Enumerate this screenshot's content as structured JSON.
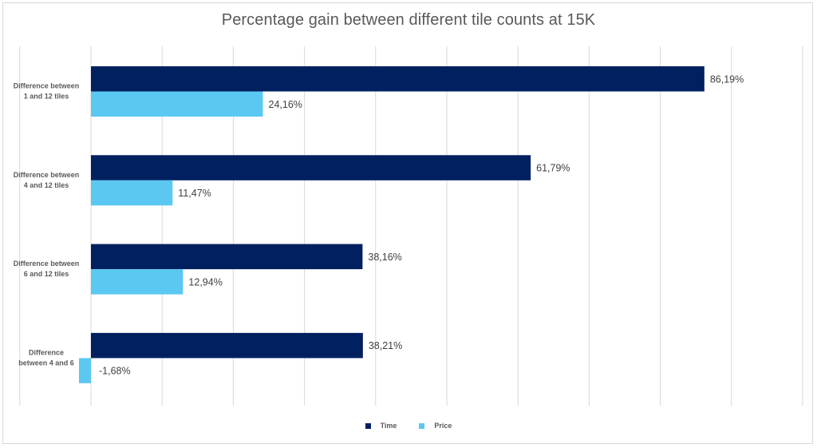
{
  "chart_data": {
    "type": "bar",
    "orientation": "horizontal",
    "title": "Percentage gain between different tile counts at 15K",
    "categories": [
      [
        "Difference between",
        "1 and 12 tiles"
      ],
      [
        "Difference between",
        "4 and 12 tiles"
      ],
      [
        "Difference between",
        "6 and 12 tiles"
      ],
      [
        "Difference",
        "between 4 and 6"
      ]
    ],
    "series": [
      {
        "name": "Time",
        "color": "#002060",
        "values": [
          86.19,
          61.79,
          38.16,
          38.21
        ],
        "labels": [
          "86,19%",
          "61,79%",
          "38,16%",
          "38,21%"
        ]
      },
      {
        "name": "Price",
        "color": "#5bc8f2",
        "values": [
          24.16,
          11.47,
          12.94,
          -1.68
        ],
        "labels": [
          "24,16%",
          "11,47%",
          "12,94%",
          "-1,68%"
        ]
      }
    ],
    "xlim": [
      -10,
      100
    ],
    "grid": true,
    "legend_position": "bottom",
    "xlabel": "",
    "ylabel": ""
  }
}
